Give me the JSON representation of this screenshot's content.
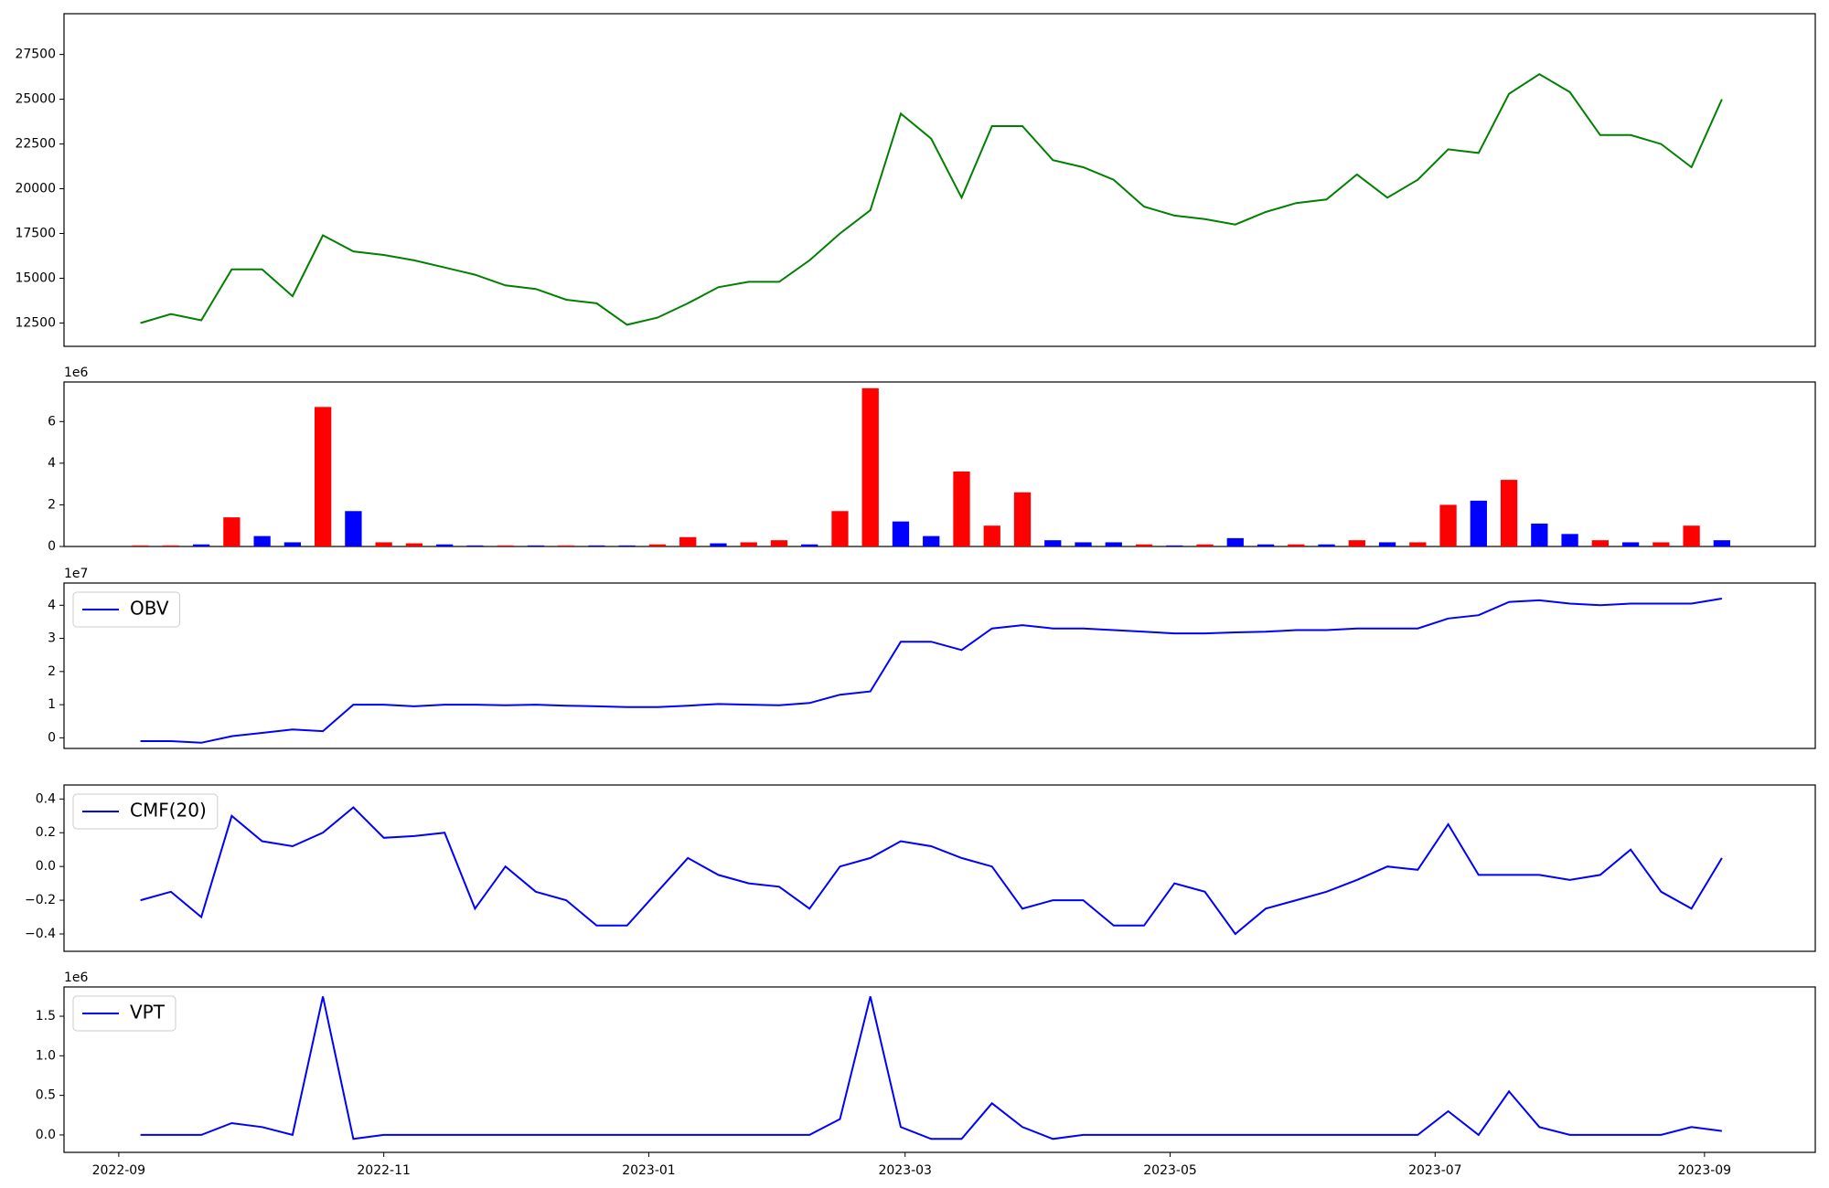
{
  "chart_data": [
    {
      "type": "line",
      "color": "green",
      "x": [
        5,
        12,
        19,
        26,
        33,
        40,
        47,
        54,
        61,
        68,
        75,
        82,
        89,
        96,
        103,
        110,
        117,
        124,
        131,
        138,
        145,
        152,
        159,
        166,
        173,
        180,
        187,
        194,
        201,
        208,
        215,
        222,
        229,
        236,
        243,
        250,
        257,
        264,
        271,
        278,
        285,
        292,
        299,
        306,
        313,
        320,
        327,
        334,
        341,
        348,
        355,
        362,
        369
      ],
      "values": [
        12500,
        13000,
        12650,
        15500,
        15500,
        14000,
        17400,
        16500,
        16300,
        16000,
        15600,
        15200,
        14600,
        14400,
        13800,
        13600,
        12400,
        12800,
        13600,
        14500,
        14800,
        14800,
        16000,
        17500,
        18800,
        24200,
        22800,
        19500,
        23500,
        23500,
        21600,
        21200,
        20500,
        19000,
        18500,
        18300,
        18000,
        18700,
        19200,
        19400,
        20800,
        19500,
        20500,
        22200,
        22000,
        25300,
        26400,
        25400,
        23000,
        23000,
        22500,
        21200,
        25000
      ],
      "xlim": [
        -12.6,
        390.5
      ],
      "ylim": [
        11196,
        29778
      ],
      "yticks": [
        12500,
        15000,
        17500,
        20000,
        22500,
        25000,
        27500
      ]
    },
    {
      "type": "bar",
      "offset_label": "1e6",
      "x": [
        5,
        12,
        19,
        26,
        33,
        40,
        47,
        54,
        61,
        68,
        75,
        82,
        89,
        96,
        103,
        110,
        117,
        124,
        131,
        138,
        145,
        152,
        159,
        166,
        173,
        180,
        187,
        194,
        201,
        208,
        215,
        222,
        229,
        236,
        243,
        250,
        257,
        264,
        271,
        278,
        285,
        292,
        299,
        306,
        313,
        320,
        327,
        334,
        341,
        348,
        355,
        362,
        369
      ],
      "values": [
        0.05,
        0.05,
        0.1,
        1.4,
        0.5,
        0.2,
        6.7,
        1.7,
        0.2,
        0.15,
        0.1,
        0.05,
        0.05,
        0.05,
        0.05,
        0.05,
        0.05,
        0.1,
        0.45,
        0.15,
        0.2,
        0.3,
        0.1,
        1.7,
        7.6,
        1.2,
        0.5,
        3.6,
        1.0,
        2.6,
        0.3,
        0.2,
        0.2,
        0.1,
        0.05,
        0.1,
        0.4,
        0.1,
        0.1,
        0.1,
        0.3,
        0.2,
        0.2,
        2.0,
        2.2,
        3.2,
        1.1,
        0.6,
        0.3,
        0.2,
        0.2,
        1.0,
        0.3
      ],
      "colors": [
        "red",
        "red",
        "blue",
        "red",
        "blue",
        "blue",
        "red",
        "blue",
        "red",
        "red",
        "blue",
        "blue",
        "red",
        "blue",
        "red",
        "blue",
        "blue",
        "red",
        "red",
        "blue",
        "red",
        "red",
        "blue",
        "red",
        "red",
        "blue",
        "blue",
        "red",
        "red",
        "red",
        "blue",
        "blue",
        "blue",
        "red",
        "blue",
        "red",
        "blue",
        "blue",
        "red",
        "blue",
        "red",
        "blue",
        "red",
        "red",
        "blue",
        "red",
        "blue",
        "blue",
        "red",
        "blue",
        "red",
        "red",
        "blue"
      ],
      "xlim": [
        -12.6,
        390.5
      ],
      "ylim": [
        0,
        7.9
      ],
      "yticks": [
        0,
        2,
        4,
        6
      ]
    },
    {
      "type": "line",
      "offset_label": "1e7",
      "legend": "upper left",
      "x": [
        5,
        12,
        19,
        26,
        33,
        40,
        47,
        54,
        61,
        68,
        75,
        82,
        89,
        96,
        103,
        110,
        117,
        124,
        131,
        138,
        145,
        152,
        159,
        166,
        173,
        180,
        187,
        194,
        201,
        208,
        215,
        222,
        229,
        236,
        243,
        250,
        257,
        264,
        271,
        278,
        285,
        292,
        299,
        306,
        313,
        320,
        327,
        334,
        341,
        348,
        355,
        362,
        369
      ],
      "series": [
        {
          "name": "OBV",
          "color": "blue",
          "values": [
            -0.1,
            -0.1,
            -0.15,
            0.05,
            0.15,
            0.25,
            0.2,
            1.0,
            1.0,
            0.95,
            1.0,
            1.0,
            0.98,
            1.0,
            0.97,
            0.95,
            0.93,
            0.93,
            0.97,
            1.02,
            1.0,
            0.98,
            1.05,
            1.3,
            1.4,
            2.9,
            2.9,
            2.65,
            3.3,
            3.4,
            3.3,
            3.3,
            3.25,
            3.2,
            3.15,
            3.15,
            3.18,
            3.2,
            3.25,
            3.25,
            3.3,
            3.3,
            3.3,
            3.6,
            3.7,
            4.1,
            4.15,
            4.05,
            4.0,
            4.05,
            4.05,
            4.05,
            4.2
          ]
        }
      ],
      "xlim": [
        -12.6,
        390.5
      ],
      "ylim": [
        -0.32,
        4.67
      ],
      "yticks": [
        0,
        1,
        2,
        3,
        4
      ]
    },
    {
      "type": "line",
      "legend": "upper left",
      "x": [
        5,
        12,
        19,
        26,
        33,
        40,
        47,
        54,
        61,
        68,
        75,
        82,
        89,
        96,
        103,
        110,
        117,
        124,
        131,
        138,
        145,
        152,
        159,
        166,
        173,
        180,
        187,
        194,
        201,
        208,
        215,
        222,
        229,
        236,
        243,
        250,
        257,
        264,
        271,
        278,
        285,
        292,
        299,
        306,
        313,
        320,
        327,
        334,
        341,
        348,
        355,
        362,
        369
      ],
      "series": [
        {
          "name": "CMF(20)",
          "color": "blue",
          "values": [
            -0.2,
            -0.15,
            -0.3,
            0.3,
            0.15,
            0.12,
            0.2,
            0.35,
            0.17,
            0.18,
            0.2,
            -0.25,
            0.0,
            -0.15,
            -0.2,
            -0.35,
            -0.35,
            -0.15,
            0.05,
            -0.05,
            -0.1,
            -0.12,
            -0.25,
            0.0,
            0.05,
            0.15,
            0.12,
            0.05,
            0.0,
            -0.25,
            -0.2,
            -0.2,
            -0.35,
            -0.35,
            -0.1,
            -0.15,
            -0.4,
            -0.25,
            -0.2,
            -0.15,
            -0.08,
            0.0,
            -0.02,
            0.25,
            -0.05,
            -0.05,
            -0.05,
            -0.08,
            -0.05,
            0.1,
            -0.15,
            -0.25,
            0.05
          ]
        }
      ],
      "xlim": [
        -12.6,
        390.5
      ],
      "ylim": [
        -0.503,
        0.483
      ],
      "yticks": [
        {
          "value": -0.4,
          "label": "−0.4"
        },
        {
          "value": -0.2,
          "label": "−0.2"
        },
        {
          "value": 0,
          "label": "0.0"
        },
        0.2,
        0.4
      ]
    },
    {
      "type": "line",
      "offset_label": "1e6",
      "legend": "upper left",
      "x": [
        5,
        12,
        19,
        26,
        33,
        40,
        47,
        54,
        61,
        68,
        75,
        82,
        89,
        96,
        103,
        110,
        117,
        124,
        131,
        138,
        145,
        152,
        159,
        166,
        173,
        180,
        187,
        194,
        201,
        208,
        215,
        222,
        229,
        236,
        243,
        250,
        257,
        264,
        271,
        278,
        285,
        292,
        299,
        306,
        313,
        320,
        327,
        334,
        341,
        348,
        355,
        362,
        369
      ],
      "series": [
        {
          "name": "VPT",
          "color": "blue",
          "values": [
            0.0,
            0.0,
            0.0,
            0.15,
            0.1,
            0.0,
            1.75,
            -0.05,
            0.0,
            0.0,
            0.0,
            0.0,
            0.0,
            0.0,
            0.0,
            0.0,
            0.0,
            0.0,
            0.0,
            0.0,
            0.0,
            0.0,
            0.0,
            0.2,
            1.75,
            0.1,
            -0.05,
            -0.05,
            0.4,
            0.1,
            -0.05,
            0.0,
            0.0,
            0.0,
            0.0,
            0.0,
            0.0,
            0.0,
            0.0,
            0.0,
            0.0,
            0.0,
            0.0,
            0.3,
            0.0,
            0.55,
            0.1,
            0.0,
            0.0,
            0.0,
            0.0,
            0.1,
            0.05
          ]
        }
      ],
      "xlim": [
        -12.6,
        390.5
      ],
      "ylim": [
        -0.22,
        1.87
      ],
      "yticks": [
        {
          "value": 0,
          "label": "0.0"
        },
        0.5,
        {
          "value": 1,
          "label": "1.0"
        },
        1.5
      ],
      "xticks": [
        {
          "value": 0,
          "label": "2022-09"
        },
        {
          "value": 61,
          "label": "2022-11"
        },
        {
          "value": 122,
          "label": "2023-01"
        },
        {
          "value": 181,
          "label": "2023-03"
        },
        {
          "value": 242,
          "label": "2023-05"
        },
        {
          "value": 303,
          "label": "2023-07"
        },
        {
          "value": 365,
          "label": "2023-09"
        }
      ]
    }
  ]
}
